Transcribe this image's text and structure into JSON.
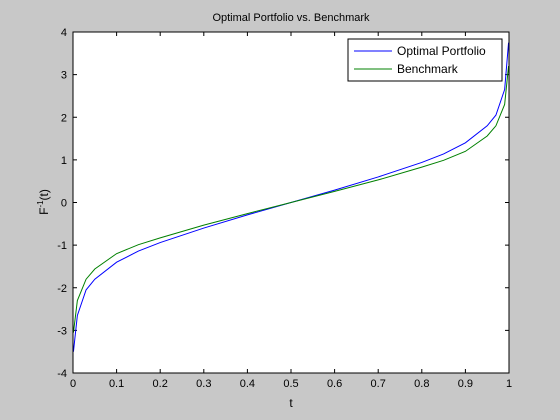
{
  "chart_data": {
    "type": "line",
    "title": "Optimal Portfolio vs. Benchmark",
    "xlabel": "t",
    "ylabel_base": "F",
    "ylabel_sup": "-1",
    "ylabel_arg": "(t)",
    "xlim": [
      0,
      1
    ],
    "ylim": [
      -4,
      4
    ],
    "xticks": [
      0,
      0.1,
      0.2,
      0.3,
      0.4,
      0.5,
      0.6,
      0.7,
      0.8,
      0.9,
      1
    ],
    "xtick_labels": [
      "0",
      "0.1",
      "0.2",
      "0.3",
      "0.4",
      "0.5",
      "0.6",
      "0.7",
      "0.8",
      "0.9",
      "1"
    ],
    "yticks": [
      -4,
      -3,
      -2,
      -1,
      0,
      1,
      2,
      3,
      4
    ],
    "ytick_labels": [
      "-4",
      "-3",
      "-2",
      "-1",
      "0",
      "1",
      "2",
      "3",
      "4"
    ],
    "grid": false,
    "legend_position": "top-right",
    "series": [
      {
        "name": "Optimal Portfolio",
        "color": "#0000ff",
        "x": [
          0.001,
          0.01,
          0.03,
          0.05,
          0.1,
          0.15,
          0.2,
          0.3,
          0.4,
          0.5,
          0.6,
          0.7,
          0.8,
          0.85,
          0.9,
          0.95,
          0.97,
          0.99,
          0.999
        ],
        "y": [
          -3.5,
          -2.65,
          -2.05,
          -1.8,
          -1.4,
          -1.14,
          -0.94,
          -0.6,
          -0.29,
          0.0,
          0.29,
          0.6,
          0.94,
          1.14,
          1.4,
          1.8,
          2.05,
          2.65,
          3.75
        ]
      },
      {
        "name": "Benchmark",
        "color": "#008000",
        "x": [
          0.001,
          0.01,
          0.03,
          0.05,
          0.1,
          0.15,
          0.2,
          0.3,
          0.4,
          0.5,
          0.6,
          0.7,
          0.8,
          0.85,
          0.9,
          0.95,
          0.97,
          0.99,
          0.999
        ],
        "y": [
          -3.05,
          -2.3,
          -1.8,
          -1.56,
          -1.2,
          -0.99,
          -0.83,
          -0.53,
          -0.26,
          0.0,
          0.26,
          0.53,
          0.83,
          0.99,
          1.2,
          1.56,
          1.8,
          2.3,
          3.2
        ]
      }
    ]
  }
}
